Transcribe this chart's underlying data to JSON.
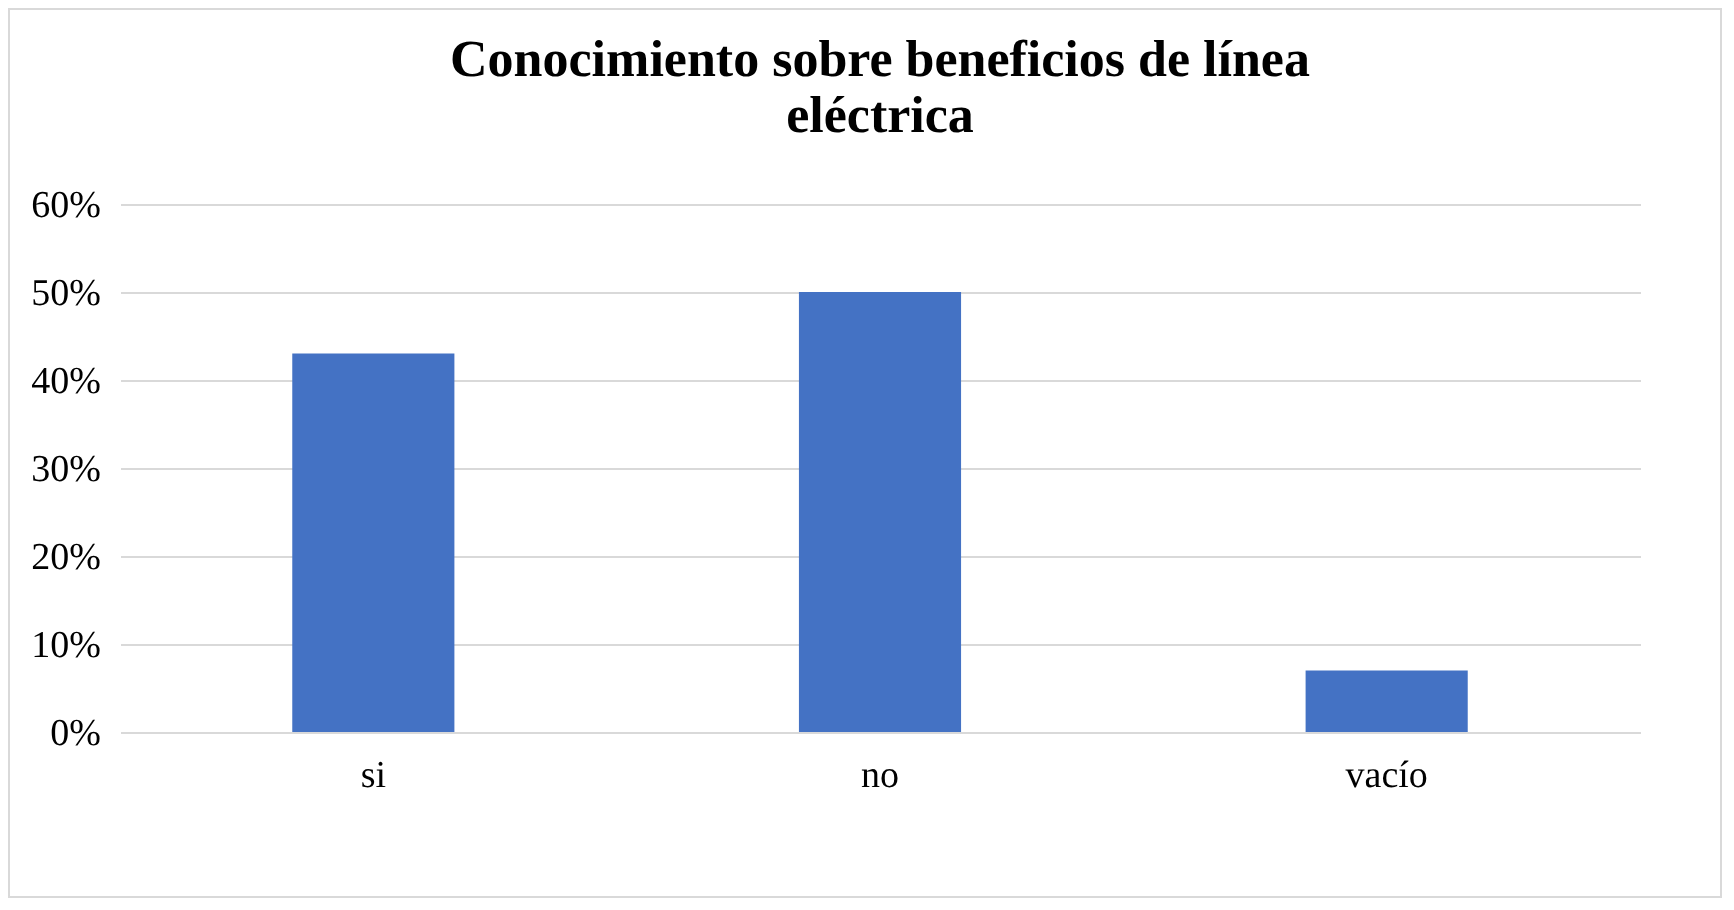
{
  "chart_data": {
    "type": "bar",
    "title": "Conocimiento sobre beneficios de línea eléctrica",
    "categories": [
      "si",
      "no",
      "vacío"
    ],
    "values": [
      43,
      50,
      7
    ],
    "color": "#4472c4",
    "ylim": [
      0,
      60
    ],
    "yticks": [
      {
        "value": 0,
        "label": "0%"
      },
      {
        "value": 10,
        "label": "10%"
      },
      {
        "value": 20,
        "label": "20%"
      },
      {
        "value": 30,
        "label": "30%"
      },
      {
        "value": 40,
        "label": "40%"
      },
      {
        "value": 50,
        "label": "50%"
      },
      {
        "value": 60,
        "label": "60%"
      }
    ],
    "grid": "y"
  }
}
